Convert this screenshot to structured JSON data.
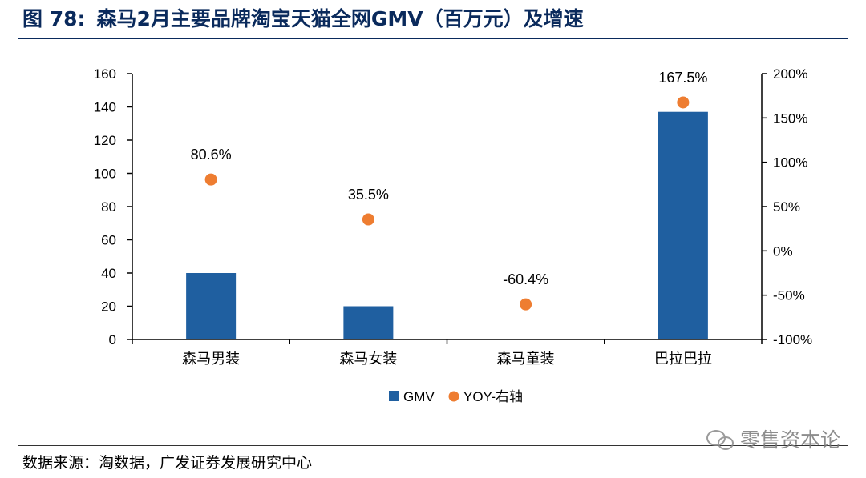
{
  "title": {
    "figure": "图 78:",
    "text": "森马2月主要品牌淘宝天猫全网GMV（百万元）及增速"
  },
  "source": "数据来源：淘数据，广发证券发展研究中心",
  "watermark": "零售资本论",
  "chart_data": {
    "type": "bar",
    "categories": [
      "森马男装",
      "森马女装",
      "森马童装",
      "巴拉巴拉"
    ],
    "series": [
      {
        "name": "GMV",
        "type": "bar",
        "axis": "left",
        "color": "#1f5fa0",
        "values": [
          40,
          20,
          0,
          137
        ]
      },
      {
        "name": "YOY-右轴",
        "type": "scatter",
        "axis": "right",
        "color": "#ee7d31",
        "values": [
          80.6,
          35.5,
          -60.4,
          167.5
        ],
        "labels": [
          "80.6%",
          "35.5%",
          "-60.4%",
          "167.5%"
        ]
      }
    ],
    "ylim": [
      0,
      160
    ],
    "y_ticks": [
      "0",
      "20",
      "40",
      "60",
      "80",
      "100",
      "120",
      "140",
      "160"
    ],
    "y2lim": [
      -100,
      200
    ],
    "y2_ticks": [
      "-100%",
      "-50%",
      "0%",
      "50%",
      "100%",
      "150%",
      "200%"
    ],
    "legend": "bottom-center",
    "grid": false
  }
}
